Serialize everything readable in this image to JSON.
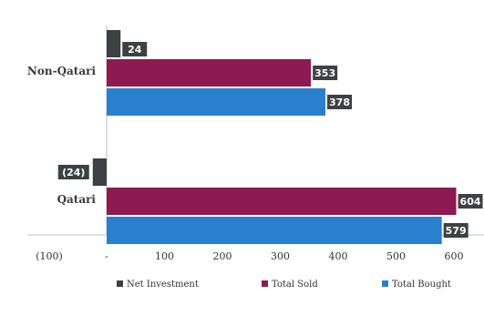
{
  "chart_data": {
    "type": "bar",
    "orientation": "horizontal",
    "categories": [
      "Non-Qatari",
      "Qatari"
    ],
    "series": [
      {
        "name": "Net Investment",
        "values": [
          24,
          -24
        ],
        "labels": [
          "24",
          "(24)"
        ],
        "color": "#3d4142"
      },
      {
        "name": "Total Sold",
        "values": [
          353,
          604
        ],
        "labels": [
          "353",
          "604"
        ],
        "color": "#8e1a52"
      },
      {
        "name": "Total Bought",
        "values": [
          378,
          579
        ],
        "labels": [
          "378",
          "579"
        ],
        "color": "#2a7fcf"
      }
    ],
    "x_ticks": [
      {
        "value": -100,
        "label": "(100)"
      },
      {
        "value": 0,
        "label": "-"
      },
      {
        "value": 100,
        "label": "100"
      },
      {
        "value": 200,
        "label": "200"
      },
      {
        "value": 300,
        "label": "300"
      },
      {
        "value": 400,
        "label": "400"
      },
      {
        "value": 500,
        "label": "500"
      },
      {
        "value": 600,
        "label": "600"
      }
    ],
    "xlim": [
      -100,
      650
    ],
    "grid": false,
    "legend_position": "bottom",
    "label_bg_color": "#3d4142"
  }
}
